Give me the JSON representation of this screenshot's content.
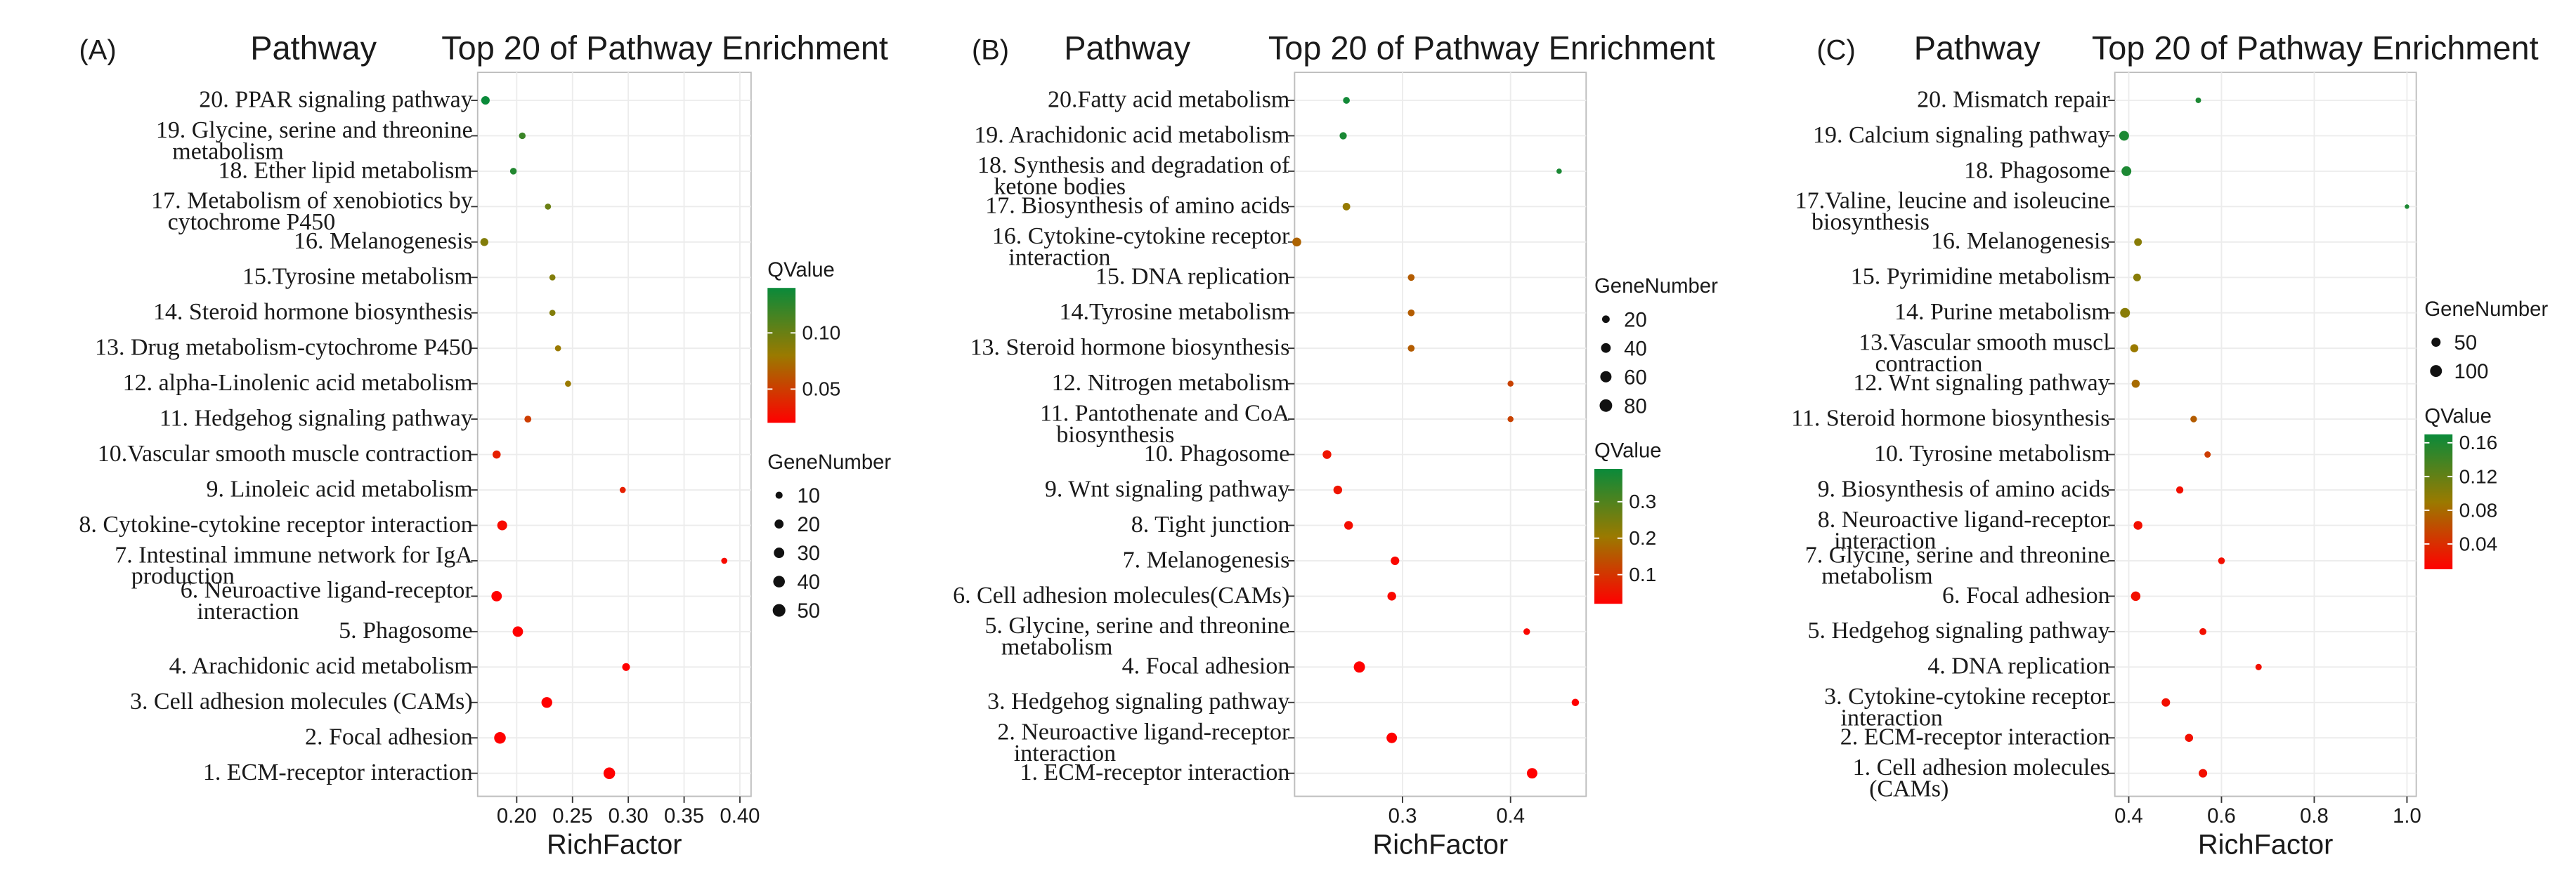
{
  "chart_data": [
    {
      "type": "scatter",
      "panel_label": "(A)",
      "ylabel": "Pathway",
      "title": "Top 20 of Pathway Enrichment",
      "xlabel": "RichFactor",
      "xlim": [
        0.165,
        0.41
      ],
      "xticks": [
        0.2,
        0.25,
        0.3,
        0.35,
        0.4
      ],
      "xtick_labels": [
        "0.20",
        "0.25",
        "0.30",
        "0.35",
        "0.40"
      ],
      "legend_order": [
        "color",
        "size"
      ],
      "qvalue_legend": {
        "title": "QValue",
        "min": 0.02,
        "max": 0.14,
        "ticks": [
          0.05,
          0.1
        ],
        "tick_labels": [
          "0.05",
          "0.10"
        ]
      },
      "size_legend": {
        "title": "GeneNumber",
        "values": [
          10,
          20,
          30,
          40,
          50
        ],
        "labels": [
          "10",
          "20",
          "30",
          "40",
          "50"
        ],
        "max": 55
      },
      "points": [
        {
          "pathway": [
            "20. PPAR signaling pathway"
          ],
          "rich_factor": 0.172,
          "gene_number": 17,
          "q_value": 0.14
        },
        {
          "pathway": [
            "19. Glycine, serine and threonine",
            "metabolism"
          ],
          "rich_factor": 0.205,
          "gene_number": 8,
          "q_value": 0.12
        },
        {
          "pathway": [
            "18. Ether lipid metabolism"
          ],
          "rich_factor": 0.197,
          "gene_number": 8,
          "q_value": 0.13
        },
        {
          "pathway": [
            "17. Metabolism of xenobiotics by",
            "cytochrome P450"
          ],
          "rich_factor": 0.228,
          "gene_number": 6,
          "q_value": 0.1
        },
        {
          "pathway": [
            "16. Melanogenesis"
          ],
          "rich_factor": 0.171,
          "gene_number": 14,
          "q_value": 0.09
        },
        {
          "pathway": [
            "15.Tyrosine metabolism"
          ],
          "rich_factor": 0.232,
          "gene_number": 6,
          "q_value": 0.09
        },
        {
          "pathway": [
            "14. Steroid hormone biosynthesis"
          ],
          "rich_factor": 0.232,
          "gene_number": 6,
          "q_value": 0.09
        },
        {
          "pathway": [
            "13. Drug metabolism-cytochrome P450"
          ],
          "rich_factor": 0.237,
          "gene_number": 6,
          "q_value": 0.08
        },
        {
          "pathway": [
            "12. alpha-Linolenic acid metabolism"
          ],
          "rich_factor": 0.246,
          "gene_number": 6,
          "q_value": 0.08
        },
        {
          "pathway": [
            "11. Hedgehog signaling pathway"
          ],
          "rich_factor": 0.21,
          "gene_number": 9,
          "q_value": 0.05
        },
        {
          "pathway": [
            "10.Vascular smooth muscle contraction"
          ],
          "rich_factor": 0.182,
          "gene_number": 15,
          "q_value": 0.035
        },
        {
          "pathway": [
            "9. Linoleic acid metabolism"
          ],
          "rich_factor": 0.295,
          "gene_number": 6,
          "q_value": 0.035
        },
        {
          "pathway": [
            "8. Cytokine-cytokine receptor interaction"
          ],
          "rich_factor": 0.187,
          "gene_number": 26,
          "q_value": 0.025
        },
        {
          "pathway": [
            "7. Intestinal immune network for IgA",
            "production"
          ],
          "rich_factor": 0.386,
          "gene_number": 6,
          "q_value": 0.025
        },
        {
          "pathway": [
            "6. Neuroactive ligand-receptor",
            "interaction"
          ],
          "rich_factor": 0.182,
          "gene_number": 30,
          "q_value": 0.02
        },
        {
          "pathway": [
            "5. Phagosome"
          ],
          "rich_factor": 0.201,
          "gene_number": 30,
          "q_value": 0.02
        },
        {
          "pathway": [
            "4. Arachidonic acid metabolism"
          ],
          "rich_factor": 0.298,
          "gene_number": 13,
          "q_value": 0.02
        },
        {
          "pathway": [
            "3. Cell adhesion molecules (CAMs)"
          ],
          "rich_factor": 0.227,
          "gene_number": 33,
          "q_value": 0.02
        },
        {
          "pathway": [
            "2. Focal adhesion"
          ],
          "rich_factor": 0.185,
          "gene_number": 40,
          "q_value": 0.02
        },
        {
          "pathway": [
            "1. ECM-receptor interaction"
          ],
          "rich_factor": 0.283,
          "gene_number": 40,
          "q_value": 0.02
        }
      ]
    },
    {
      "type": "scatter",
      "panel_label": "(B)",
      "ylabel": "Pathway",
      "title": "Top 20 of Pathway Enrichment",
      "xlabel": "RichFactor",
      "xlim": [
        0.2,
        0.47
      ],
      "xticks": [
        0.3,
        0.4
      ],
      "xtick_labels": [
        "0.3",
        "0.4"
      ],
      "legend_order": [
        "size",
        "color"
      ],
      "qvalue_legend": {
        "title": "QValue",
        "min": 0.02,
        "max": 0.39,
        "ticks": [
          0.1,
          0.2,
          0.3
        ],
        "tick_labels": [
          "0.1",
          "0.2",
          "0.3"
        ]
      },
      "size_legend": {
        "title": "GeneNumber",
        "values": [
          20,
          40,
          60,
          80
        ],
        "labels": [
          "20",
          "40",
          "60",
          "80"
        ],
        "max": 90
      },
      "points": [
        {
          "pathway": [
            "20.Fatty acid metabolism"
          ],
          "rich_factor": 0.248,
          "gene_number": 14,
          "q_value": 0.38
        },
        {
          "pathway": [
            "19. Arachidonic acid metabolism"
          ],
          "rich_factor": 0.245,
          "gene_number": 17,
          "q_value": 0.37
        },
        {
          "pathway": [
            "18. Synthesis and degradation of",
            "ketone bodies"
          ],
          "rich_factor": 0.445,
          "gene_number": 6,
          "q_value": 0.37
        },
        {
          "pathway": [
            "17. Biosynthesis of amino acids"
          ],
          "rich_factor": 0.248,
          "gene_number": 20,
          "q_value": 0.21
        },
        {
          "pathway": [
            "16. Cytokine-cytokine receptor",
            "interaction"
          ],
          "rich_factor": 0.202,
          "gene_number": 32,
          "q_value": 0.17
        },
        {
          "pathway": [
            "15. DNA replication"
          ],
          "rich_factor": 0.308,
          "gene_number": 14,
          "q_value": 0.16
        },
        {
          "pathway": [
            "14.Tyrosine metabolism"
          ],
          "rich_factor": 0.308,
          "gene_number": 14,
          "q_value": 0.16
        },
        {
          "pathway": [
            "13. Steroid hormone biosynthesis"
          ],
          "rich_factor": 0.308,
          "gene_number": 14,
          "q_value": 0.16
        },
        {
          "pathway": [
            "12. Nitrogen metabolism"
          ],
          "rich_factor": 0.4,
          "gene_number": 9,
          "q_value": 0.12
        },
        {
          "pathway": [
            "11. Pantothenate and CoA",
            "biosynthesis"
          ],
          "rich_factor": 0.4,
          "gene_number": 9,
          "q_value": 0.12
        },
        {
          "pathway": [
            "10. Phagosome"
          ],
          "rich_factor": 0.23,
          "gene_number": 30,
          "q_value": 0.05
        },
        {
          "pathway": [
            "9. Wnt signaling pathway"
          ],
          "rich_factor": 0.24,
          "gene_number": 30,
          "q_value": 0.05
        },
        {
          "pathway": [
            "8. Tight junction"
          ],
          "rich_factor": 0.25,
          "gene_number": 30,
          "q_value": 0.04
        },
        {
          "pathway": [
            "7. Melanogenesis"
          ],
          "rich_factor": 0.293,
          "gene_number": 28,
          "q_value": 0.03
        },
        {
          "pathway": [
            "6. Cell adhesion molecules(CAMs)"
          ],
          "rich_factor": 0.29,
          "gene_number": 30,
          "q_value": 0.03
        },
        {
          "pathway": [
            "5. Glycine, serine and threonine",
            "metabolism"
          ],
          "rich_factor": 0.415,
          "gene_number": 13,
          "q_value": 0.03
        },
        {
          "pathway": [
            "4. Focal adhesion"
          ],
          "rich_factor": 0.26,
          "gene_number": 60,
          "q_value": 0.02
        },
        {
          "pathway": [
            "3. Hedgehog signaling pathway"
          ],
          "rich_factor": 0.46,
          "gene_number": 18,
          "q_value": 0.02
        },
        {
          "pathway": [
            "2. Neuroactive ligand-receptor",
            "interaction"
          ],
          "rich_factor": 0.29,
          "gene_number": 50,
          "q_value": 0.02
        },
        {
          "pathway": [
            "1. ECM-receptor interaction"
          ],
          "rich_factor": 0.42,
          "gene_number": 50,
          "q_value": 0.02
        }
      ]
    },
    {
      "type": "scatter",
      "panel_label": "(C)",
      "ylabel": "Pathway",
      "title": "Top 20 of Pathway Enrichment",
      "xlabel": "RichFactor",
      "xlim": [
        0.37,
        1.02
      ],
      "xticks": [
        0.4,
        0.6,
        0.8,
        1.0
      ],
      "xtick_labels": [
        "0.4",
        "0.6",
        "0.8",
        "1.0"
      ],
      "legend_order": [
        "size",
        "color"
      ],
      "qvalue_legend": {
        "title": "QValue",
        "min": 0.01,
        "max": 0.17,
        "ticks": [
          0.04,
          0.08,
          0.12,
          0.16
        ],
        "tick_labels": [
          "0.04",
          "0.08",
          "0.12",
          "0.16"
        ]
      },
      "size_legend": {
        "title": "GeneNumber",
        "values": [
          50,
          100
        ],
        "labels": [
          "50",
          "100"
        ],
        "max": 130
      },
      "points": [
        {
          "pathway": [
            "20. Mismatch repair"
          ],
          "rich_factor": 0.55,
          "gene_number": 10,
          "q_value": 0.16
        },
        {
          "pathway": [
            "19. Calcium signaling pathway"
          ],
          "rich_factor": 0.39,
          "gene_number": 60,
          "q_value": 0.16
        },
        {
          "pathway": [
            "18. Phagosome"
          ],
          "rich_factor": 0.395,
          "gene_number": 60,
          "q_value": 0.16
        },
        {
          "pathway": [
            "17.Valine, leucine and isoleucine",
            "biosynthesis"
          ],
          "rich_factor": 1.0,
          "gene_number": 4,
          "q_value": 0.16
        },
        {
          "pathway": [
            "16. Melanogenesis"
          ],
          "rich_factor": 0.42,
          "gene_number": 30,
          "q_value": 0.1
        },
        {
          "pathway": [
            "15. Pyrimidine metabolism"
          ],
          "rich_factor": 0.418,
          "gene_number": 30,
          "q_value": 0.1
        },
        {
          "pathway": [
            "14. Purine metabolism"
          ],
          "rich_factor": 0.392,
          "gene_number": 60,
          "q_value": 0.1
        },
        {
          "pathway": [
            "13.Vascular smooth muscl",
            "contraction"
          ],
          "rich_factor": 0.412,
          "gene_number": 35,
          "q_value": 0.09
        },
        {
          "pathway": [
            "12. Wnt signaling pathway"
          ],
          "rich_factor": 0.415,
          "gene_number": 35,
          "q_value": 0.08
        },
        {
          "pathway": [
            "11. Steroid hormone biosynthesis"
          ],
          "rich_factor": 0.54,
          "gene_number": 18,
          "q_value": 0.07
        },
        {
          "pathway": [
            "10. Tyrosine metabolism"
          ],
          "rich_factor": 0.57,
          "gene_number": 16,
          "q_value": 0.05
        },
        {
          "pathway": [
            "9. Biosynthesis of amino acids"
          ],
          "rich_factor": 0.51,
          "gene_number": 25,
          "q_value": 0.02
        },
        {
          "pathway": [
            "8. Neuroactive ligand-receptor",
            "interaction"
          ],
          "rich_factor": 0.42,
          "gene_number": 45,
          "q_value": 0.02
        },
        {
          "pathway": [
            "7. Glycine, serine and threonine",
            "metabolism"
          ],
          "rich_factor": 0.6,
          "gene_number": 20,
          "q_value": 0.02
        },
        {
          "pathway": [
            "6. Focal adhesion"
          ],
          "rich_factor": 0.415,
          "gene_number": 55,
          "q_value": 0.02
        },
        {
          "pathway": [
            "5. Hedgehog signaling pathway"
          ],
          "rich_factor": 0.56,
          "gene_number": 22,
          "q_value": 0.02
        },
        {
          "pathway": [
            "4. DNA replication"
          ],
          "rich_factor": 0.68,
          "gene_number": 16,
          "q_value": 0.02
        },
        {
          "pathway": [
            "3. Cytokine-cytokine receptor",
            "interaction"
          ],
          "rich_factor": 0.48,
          "gene_number": 40,
          "q_value": 0.02
        },
        {
          "pathway": [
            "2. ECM-receptor interaction"
          ],
          "rich_factor": 0.53,
          "gene_number": 35,
          "q_value": 0.02
        },
        {
          "pathway": [
            "1. Cell adhesion molecules",
            "(CAMs)"
          ],
          "rich_factor": 0.56,
          "gene_number": 40,
          "q_value": 0.02
        }
      ]
    }
  ],
  "colors": {
    "low": "#ff0000",
    "mid": "#9a7a00",
    "high": "#0a8a3a",
    "grid": "#ececec",
    "frame": "#bdbdbd",
    "text": "#1a1a1a"
  }
}
